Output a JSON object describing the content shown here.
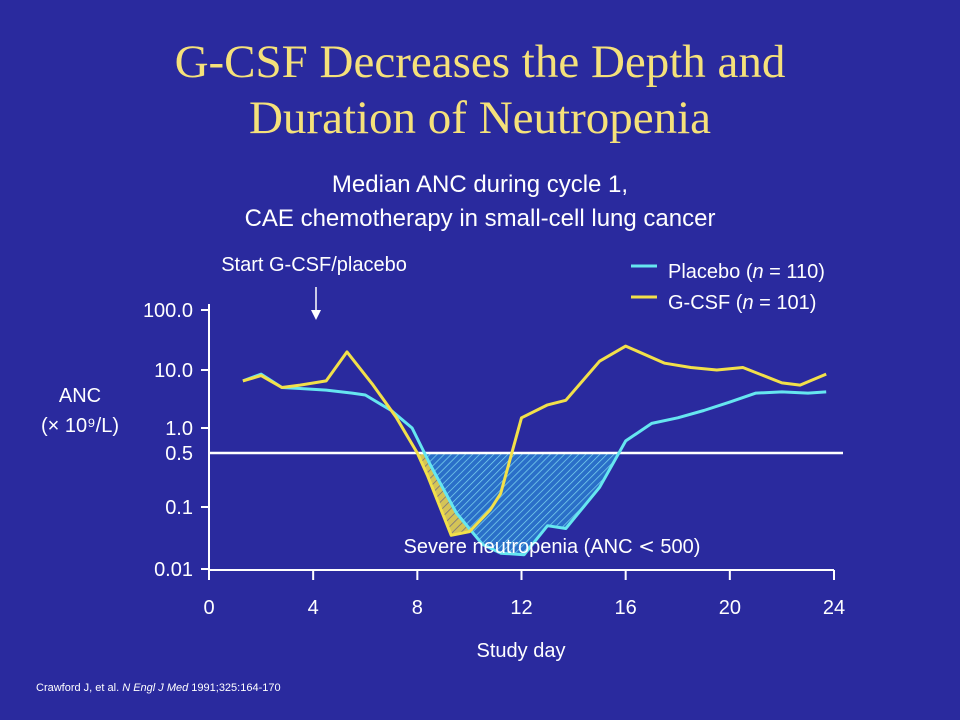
{
  "slide": {
    "title_line1": "G-CSF Decreases the Depth and",
    "title_line2": "Duration of Neutropenia",
    "subtitle_line1": "Median ANC during cycle 1,",
    "subtitle_line2": "CAE chemotherapy in small-cell lung cancer",
    "citation_authors": "Crawford J, et al. ",
    "citation_journal": "N Engl J Med",
    "citation_rest": " 1991;325:164-170"
  },
  "colors": {
    "background": "#2A2A9E",
    "title": "#F5E17A",
    "placebo": "#66E6F0",
    "gcsf": "#F2E04A",
    "text": "#FFFFFF"
  },
  "chart_data": {
    "type": "line",
    "title": "",
    "xlabel": "Study day",
    "ylabel_line1": "ANC",
    "ylabel_line2": "(× 10⁹/L)",
    "xlim": [
      0,
      24
    ],
    "ylim": [
      0.01,
      100
    ],
    "yscale": "log",
    "x_ticks": [
      0,
      4,
      8,
      12,
      16,
      20,
      24
    ],
    "x_tick_labels": [
      "0",
      "4",
      "8",
      "12",
      "16",
      "20",
      "24"
    ],
    "y_ticks": [
      0.01,
      0.1,
      0.5,
      1.0,
      10.0,
      100.0
    ],
    "y_tick_labels": [
      "0.01",
      "0.1",
      "0.5",
      "1.0",
      "10.0",
      "100.0"
    ],
    "grid": false,
    "legend_position": "top-right",
    "threshold": 0.5,
    "series": [
      {
        "name": "Placebo (n = 110)",
        "name_prefix": "Placebo (",
        "name_n": "n",
        "name_suffix": " = 110)",
        "x": [
          1.3,
          2,
          2.8,
          3.5,
          4.5,
          5.5,
          6,
          7,
          7.8,
          8.5,
          9.5,
          10.5,
          11.2,
          12.1,
          13,
          13.7,
          15,
          16,
          17,
          18,
          19,
          20,
          21,
          22,
          23,
          23.7
        ],
        "y": [
          6.5,
          8.5,
          5.0,
          4.8,
          4.5,
          4.0,
          3.7,
          2.0,
          1.0,
          0.35,
          0.08,
          0.025,
          0.018,
          0.017,
          0.05,
          0.045,
          0.18,
          0.7,
          1.2,
          1.5,
          2.0,
          2.8,
          4.0,
          4.2,
          4.0,
          4.2
        ]
      },
      {
        "name": "G-CSF (n = 101)",
        "name_prefix": "G-CSF (",
        "name_n": "n",
        "name_suffix": " = 101)",
        "x": [
          1.3,
          2,
          2.8,
          3.5,
          4.5,
          5.3,
          6.3,
          7.2,
          8,
          8.4,
          9.3,
          10,
          10.8,
          11.2,
          12,
          13,
          13.7,
          15,
          16,
          17.5,
          18.5,
          19.5,
          20.5,
          22,
          22.7,
          23.7
        ],
        "y": [
          6.5,
          8.0,
          5.0,
          5.5,
          6.5,
          20,
          5.5,
          1.5,
          0.5,
          0.25,
          0.035,
          0.04,
          0.09,
          0.15,
          1.5,
          2.5,
          3.0,
          14,
          25,
          13,
          11,
          10,
          11,
          6,
          5.5,
          8.5
        ]
      }
    ],
    "annotations": {
      "start_label": "Start G-CSF/placebo",
      "start_day": 4,
      "severe_label_prefix": "Severe neutropenia (ANC ",
      "severe_label_symbol": "<",
      "severe_label_suffix": " 500)"
    }
  }
}
